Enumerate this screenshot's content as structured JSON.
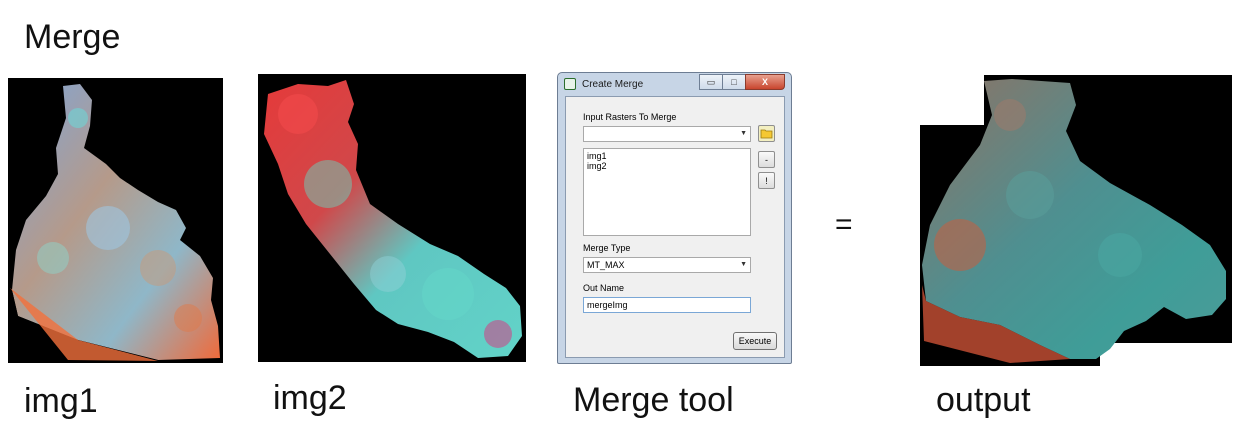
{
  "slide": {
    "title": "Merge",
    "equals_sign": "="
  },
  "captions": {
    "img1": "img1",
    "img2": "img2",
    "tool": "Merge tool",
    "output": "output"
  },
  "dialog": {
    "title": "Create Merge",
    "window_buttons": {
      "minimize": "▭",
      "maximize": "□",
      "close": "X"
    },
    "input_label": "Input Rasters To Merge",
    "input_combo_value": "",
    "input_list": [
      "img1",
      "img2"
    ],
    "side_buttons": {
      "remove": "-",
      "clear": "!"
    },
    "merge_type_label": "Merge Type",
    "merge_type_value": "MT_MAX",
    "out_name_label": "Out Name",
    "out_name_value": "mergeImg",
    "execute_label": "Execute"
  }
}
